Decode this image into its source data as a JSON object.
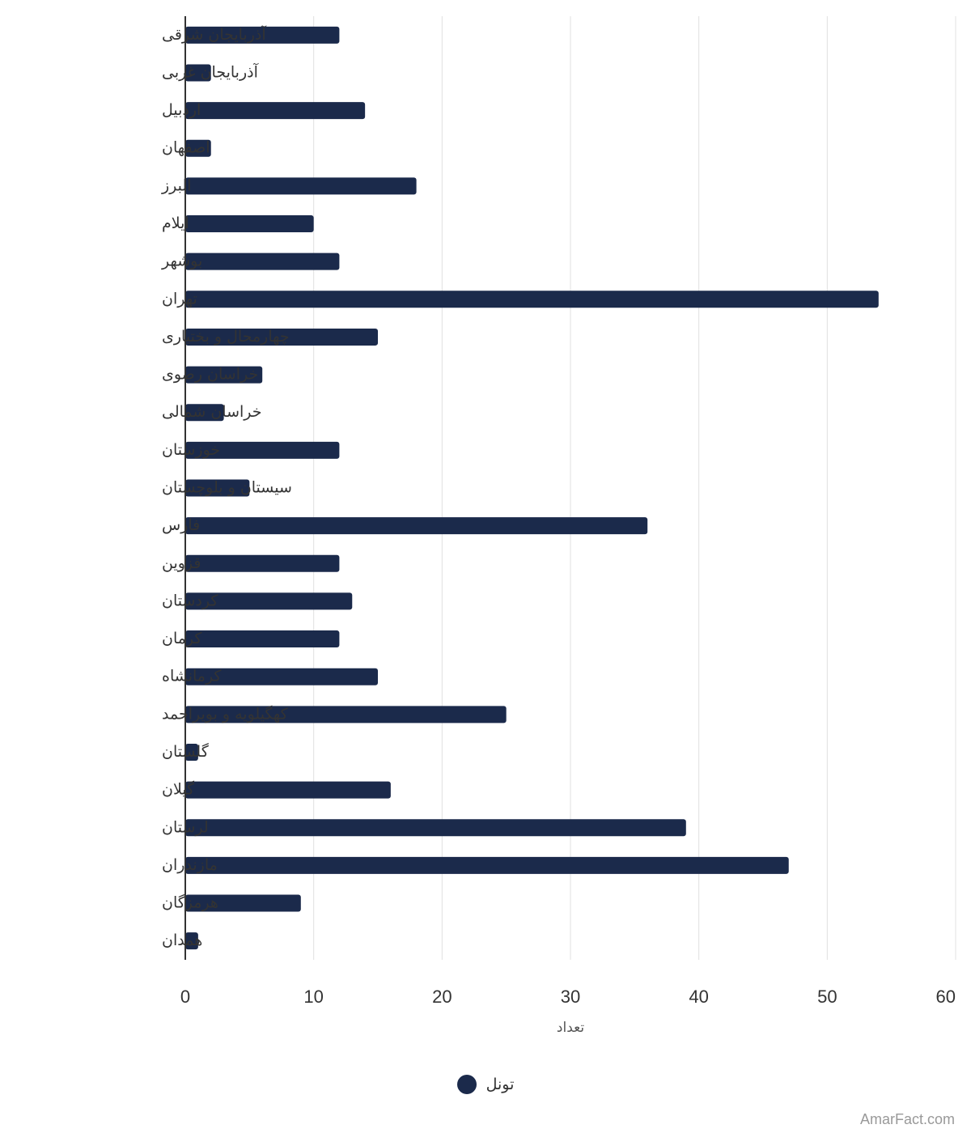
{
  "chart_data": {
    "type": "bar",
    "orientation": "horizontal",
    "categories": [
      "آذربایجان شرقی",
      "آذربایجان غربی",
      "اردبیل",
      "اصفهان",
      "البرز",
      "ایلام",
      "بوشهر",
      "تهران",
      "چهارمحال و بختیاری",
      "خراسان رضوی",
      "خراسان شمالی",
      "خوزستان",
      "سیستان و بلوچستان",
      "فارس",
      "قزوین",
      "کردستان",
      "کرمان",
      "کرمانشاه",
      "کهگیلویه و بویراحمد",
      "گلستان",
      "گیلان",
      "لرستان",
      "مازندران",
      "هرمزگان",
      "همدان"
    ],
    "series": [
      {
        "name": "تونل",
        "values": [
          12,
          2,
          14,
          2,
          18,
          10,
          12,
          54,
          15,
          6,
          3,
          12,
          5,
          36,
          12,
          13,
          12,
          15,
          25,
          1,
          16,
          39,
          47,
          9,
          1
        ]
      }
    ],
    "xlabel": "تعداد",
    "xlim": [
      0,
      60
    ],
    "xticks": [
      "0",
      "10",
      "20",
      "30",
      "40",
      "50",
      "60"
    ],
    "grid": true,
    "legend_position": "bottom-center",
    "colors": {
      "bar": "#1b2a4b",
      "grid": "#e0e0e0",
      "axis": "#333333"
    }
  },
  "credit": "AmarFact.com"
}
